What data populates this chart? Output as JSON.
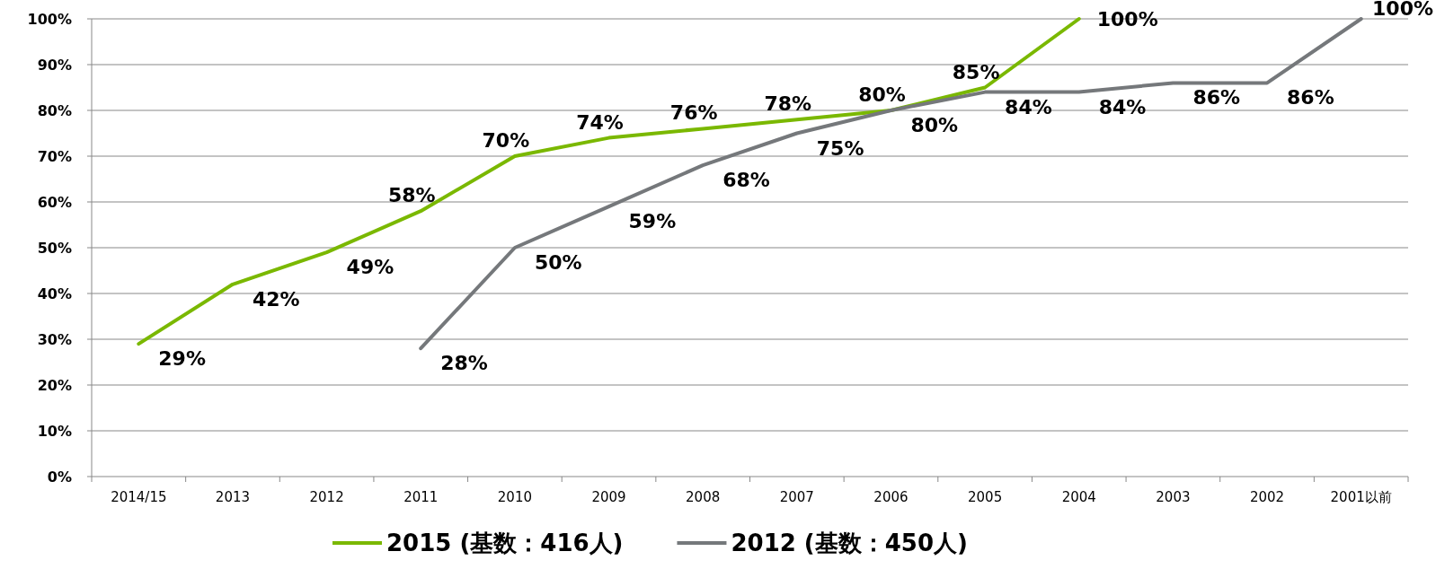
{
  "chart_data": {
    "type": "line",
    "categories": [
      "2014/15",
      "2013",
      "2012",
      "2011",
      "2010",
      "2009",
      "2008",
      "2007",
      "2006",
      "2005",
      "2004",
      "2003",
      "2002",
      "2001以前"
    ],
    "series": [
      {
        "name": "2015 (基数：416人)",
        "color": "#7ab800",
        "values": [
          29,
          42,
          49,
          58,
          70,
          74,
          76,
          78,
          80,
          85,
          100,
          null,
          null,
          null
        ],
        "value_labels": [
          "29%",
          "42%",
          "49%",
          "58%",
          "70%",
          "74%",
          "76%",
          "78%",
          "80%",
          "85%",
          "100%",
          null,
          null,
          null
        ]
      },
      {
        "name": "2012 (基数：450人)",
        "color": "#75787b",
        "values": [
          null,
          null,
          null,
          28,
          50,
          59,
          68,
          75,
          80,
          84,
          84,
          86,
          86,
          100
        ],
        "value_labels": [
          null,
          null,
          null,
          "28%",
          "50%",
          "59%",
          "68%",
          "75%",
          "80%",
          "84%",
          "84%",
          "86%",
          "86%",
          "100%"
        ]
      }
    ],
    "ylim": [
      0,
      100
    ],
    "yticks": [
      {
        "value": 0,
        "label": "0%"
      },
      {
        "value": 10,
        "label": "10%"
      },
      {
        "value": 20,
        "label": "20%"
      },
      {
        "value": 30,
        "label": "30%"
      },
      {
        "value": 40,
        "label": "40%"
      },
      {
        "value": 50,
        "label": "50%"
      },
      {
        "value": 60,
        "label": "60%"
      },
      {
        "value": 70,
        "label": "70%"
      },
      {
        "value": 80,
        "label": "80%"
      },
      {
        "value": 90,
        "label": "90%"
      },
      {
        "value": 100,
        "label": "100%"
      }
    ],
    "grid": "y",
    "legend": "bottom",
    "marker": "none",
    "line_style": "solid"
  }
}
